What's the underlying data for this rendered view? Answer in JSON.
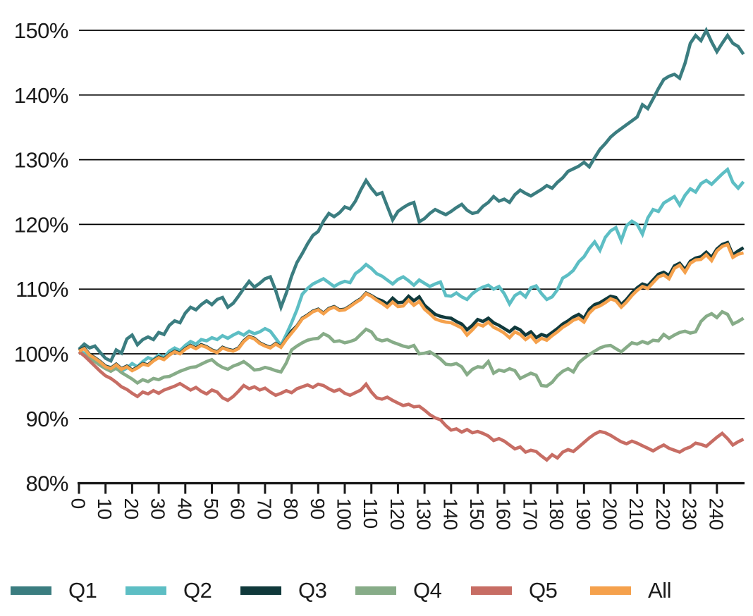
{
  "chart_data": {
    "type": "line",
    "title": "",
    "xlabel": "",
    "ylabel": "",
    "xlim": [
      0,
      250
    ],
    "ylim": [
      80,
      150
    ],
    "grid": true,
    "legend_position": "bottom",
    "x_step": 2,
    "x_ticks": [
      0,
      10,
      20,
      30,
      40,
      50,
      60,
      70,
      80,
      90,
      100,
      110,
      120,
      130,
      140,
      150,
      160,
      170,
      180,
      190,
      200,
      210,
      220,
      230,
      240
    ],
    "y_ticks": [
      {
        "value": 150,
        "label": "150%"
      },
      {
        "value": 140,
        "label": "140%"
      },
      {
        "value": 130,
        "label": "130%"
      },
      {
        "value": 120,
        "label": "120%"
      },
      {
        "value": 110,
        "label": "110%"
      },
      {
        "value": 100,
        "label": "100%"
      },
      {
        "value": 90,
        "label": "90%"
      },
      {
        "value": 80,
        "label": "80%"
      }
    ],
    "colors": {
      "axis": "#1a1a1a",
      "grid": "#000000",
      "text": "#1a1a1a",
      "background": "#ffffff"
    },
    "series": [
      {
        "name": "Q1",
        "color": "#3b7d80",
        "values": [
          100.7,
          101.5,
          100.9,
          101.2,
          100.2,
          99.3,
          98.9,
          100.6,
          100.1,
          102.3,
          102.9,
          101.4,
          102.2,
          102.6,
          102.2,
          103.3,
          103.0,
          104.4,
          105.1,
          104.8,
          106.3,
          107.2,
          106.8,
          107.6,
          108.2,
          107.6,
          108.4,
          108.7,
          107.2,
          107.8,
          108.9,
          110.1,
          111.2,
          110.3,
          110.9,
          111.6,
          111.9,
          109.8,
          107.2,
          109.4,
          112.0,
          114.1,
          115.5,
          117.0,
          118.3,
          118.9,
          120.5,
          121.7,
          121.2,
          121.8,
          122.7,
          122.4,
          123.6,
          125.3,
          126.8,
          125.6,
          124.6,
          124.9,
          122.8,
          120.7,
          122.0,
          122.6,
          123.1,
          123.4,
          120.4,
          120.9,
          121.7,
          122.3,
          121.9,
          121.5,
          122.0,
          122.6,
          123.1,
          122.2,
          121.7,
          121.9,
          122.8,
          123.4,
          124.3,
          123.6,
          123.9,
          123.4,
          124.6,
          125.3,
          124.8,
          124.4,
          124.9,
          125.4,
          126.0,
          125.6,
          126.5,
          127.2,
          128.2,
          128.6,
          129.0,
          129.6,
          128.9,
          130.3,
          131.6,
          132.5,
          133.5,
          134.2,
          134.8,
          135.4,
          136.0,
          136.6,
          138.5,
          137.9,
          139.4,
          141.0,
          142.4,
          142.9,
          143.2,
          142.6,
          144.9,
          148.0,
          149.2,
          148.4,
          150.0,
          148.2,
          146.7,
          148.0,
          149.2,
          148.0,
          147.5,
          146.3
        ]
      },
      {
        "name": "Q2",
        "color": "#5dbec4",
        "values": [
          100.4,
          100.1,
          99.5,
          99.0,
          98.5,
          98.1,
          97.9,
          97.7,
          97.3,
          97.8,
          98.5,
          98.0,
          98.8,
          99.4,
          99.1,
          99.8,
          99.4,
          100.4,
          100.9,
          100.5,
          101.3,
          101.9,
          101.5,
          102.2,
          102.0,
          102.5,
          102.2,
          102.8,
          102.4,
          102.9,
          103.3,
          102.9,
          103.5,
          103.1,
          103.4,
          103.9,
          103.5,
          102.4,
          101.3,
          103.0,
          104.8,
          106.8,
          109.2,
          110.1,
          110.8,
          111.2,
          111.6,
          111.0,
          110.4,
          110.9,
          111.2,
          111.0,
          112.4,
          113.0,
          113.8,
          113.2,
          112.4,
          112.0,
          111.4,
          110.8,
          111.5,
          111.9,
          111.3,
          110.6,
          111.4,
          110.9,
          110.4,
          110.8,
          111.1,
          109.0,
          108.9,
          109.4,
          108.8,
          108.4,
          109.3,
          109.9,
          110.3,
          110.6,
          110.0,
          110.4,
          109.3,
          107.7,
          109.0,
          109.5,
          108.8,
          110.2,
          110.5,
          109.3,
          108.4,
          108.8,
          109.9,
          111.7,
          112.2,
          112.9,
          114.2,
          115.0,
          116.3,
          117.3,
          116.0,
          118.0,
          119.0,
          119.5,
          117.5,
          119.8,
          120.5,
          120.0,
          118.5,
          121.0,
          122.3,
          122.0,
          123.3,
          123.8,
          124.3,
          123.0,
          124.5,
          125.5,
          125.0,
          126.3,
          126.8,
          126.2,
          127.0,
          127.8,
          128.5,
          126.5,
          125.6,
          126.6
        ]
      },
      {
        "name": "Q3",
        "color": "#10393b",
        "values": [
          100.5,
          100.9,
          99.9,
          99.4,
          98.8,
          98.1,
          97.8,
          98.4,
          97.7,
          98.1,
          97.5,
          97.9,
          98.5,
          98.3,
          99.0,
          99.5,
          99.2,
          99.9,
          100.4,
          100.1,
          100.8,
          101.3,
          100.9,
          101.4,
          101.1,
          100.6,
          100.3,
          101.0,
          100.7,
          100.5,
          100.9,
          102.0,
          102.7,
          102.4,
          101.7,
          101.3,
          101.0,
          101.6,
          101.1,
          102.3,
          103.5,
          104.3,
          105.5,
          106.0,
          106.6,
          106.9,
          106.3,
          107.0,
          107.3,
          106.8,
          106.9,
          107.4,
          108.0,
          108.5,
          109.4,
          109.0,
          108.5,
          108.2,
          107.7,
          108.6,
          107.9,
          108.0,
          108.9,
          108.2,
          108.8,
          107.5,
          106.8,
          106.1,
          105.8,
          105.6,
          105.5,
          105.0,
          104.6,
          103.7,
          104.4,
          105.3,
          105.0,
          105.5,
          104.8,
          104.4,
          103.9,
          103.4,
          104.1,
          103.7,
          102.9,
          103.4,
          102.5,
          103.0,
          102.7,
          103.3,
          103.9,
          104.6,
          105.1,
          105.7,
          106.1,
          105.5,
          106.9,
          107.6,
          107.9,
          108.4,
          108.9,
          108.7,
          107.6,
          108.4,
          109.4,
          110.2,
          110.8,
          110.5,
          111.4,
          112.3,
          112.6,
          112.1,
          113.6,
          114.0,
          113.0,
          114.3,
          114.8,
          115.0,
          115.7,
          114.9,
          116.2,
          116.9,
          117.2,
          115.3,
          115.9,
          116.4
        ]
      },
      {
        "name": "Q4",
        "color": "#87ac88",
        "values": [
          100.3,
          99.8,
          99.3,
          98.8,
          98.2,
          97.7,
          97.3,
          97.8,
          97.1,
          96.6,
          96.1,
          95.5,
          96.0,
          95.7,
          96.2,
          96.0,
          96.4,
          96.5,
          96.9,
          97.3,
          97.6,
          97.9,
          98.0,
          98.4,
          98.8,
          99.1,
          98.4,
          97.9,
          97.6,
          98.1,
          98.4,
          98.8,
          98.2,
          97.5,
          97.6,
          97.9,
          97.7,
          97.4,
          97.2,
          98.6,
          100.6,
          101.2,
          101.7,
          102.1,
          102.3,
          102.4,
          103.1,
          102.7,
          101.9,
          102.0,
          101.7,
          101.9,
          102.2,
          103.0,
          103.8,
          103.4,
          102.3,
          102.0,
          102.2,
          101.8,
          101.5,
          101.2,
          101.0,
          101.3,
          100.0,
          100.1,
          100.3,
          99.8,
          99.2,
          98.4,
          98.3,
          98.5,
          98.0,
          96.8,
          97.6,
          98.0,
          97.9,
          98.8,
          97.0,
          97.5,
          97.3,
          97.7,
          97.4,
          96.2,
          96.6,
          97.0,
          96.7,
          95.1,
          95.0,
          95.6,
          96.6,
          97.3,
          97.7,
          97.2,
          98.6,
          99.3,
          99.9,
          100.4,
          100.9,
          101.2,
          101.3,
          100.8,
          100.3,
          101.0,
          101.7,
          101.5,
          101.9,
          101.6,
          102.1,
          102.0,
          103.0,
          102.4,
          102.9,
          103.3,
          103.5,
          103.2,
          103.4,
          105.0,
          105.8,
          106.2,
          105.6,
          106.5,
          106.1,
          104.6,
          105.0,
          105.5
        ]
      },
      {
        "name": "Q5",
        "color": "#c76d64",
        "values": [
          100.3,
          99.7,
          98.9,
          98.1,
          97.3,
          96.6,
          96.2,
          95.6,
          94.9,
          94.5,
          93.9,
          93.4,
          94.1,
          93.8,
          94.3,
          93.9,
          94.4,
          94.7,
          95.0,
          95.4,
          94.9,
          94.4,
          94.8,
          94.2,
          93.8,
          94.4,
          94.1,
          93.2,
          92.8,
          93.4,
          94.2,
          95.1,
          94.6,
          94.9,
          94.4,
          94.7,
          94.1,
          93.6,
          93.9,
          94.3,
          94.0,
          94.6,
          94.9,
          95.2,
          94.8,
          95.3,
          95.1,
          94.6,
          94.2,
          94.5,
          93.9,
          93.6,
          94.0,
          94.4,
          95.3,
          94.1,
          93.2,
          93.0,
          93.3,
          92.8,
          92.4,
          92.0,
          92.2,
          91.8,
          91.9,
          91.3,
          90.6,
          90.1,
          89.8,
          88.9,
          88.2,
          88.4,
          87.9,
          88.3,
          87.8,
          88.0,
          87.7,
          87.3,
          86.6,
          86.9,
          86.5,
          85.9,
          85.3,
          85.6,
          84.8,
          85.1,
          84.9,
          84.2,
          83.6,
          84.4,
          83.9,
          84.8,
          85.2,
          84.9,
          85.6,
          86.3,
          87.0,
          87.6,
          88.0,
          87.8,
          87.4,
          86.9,
          86.4,
          86.1,
          86.5,
          86.2,
          85.8,
          85.4,
          85.0,
          85.5,
          85.9,
          85.4,
          85.1,
          84.8,
          85.3,
          85.6,
          86.2,
          86.0,
          85.7,
          86.4,
          87.1,
          87.7,
          86.9,
          85.9,
          86.4,
          86.8
        ]
      },
      {
        "name": "All",
        "color": "#f5a14c",
        "values": [
          100.4,
          100.8,
          99.8,
          99.3,
          98.7,
          98.0,
          97.7,
          98.3,
          97.6,
          98.0,
          97.4,
          97.8,
          98.4,
          98.2,
          98.9,
          99.4,
          99.1,
          99.8,
          100.3,
          100.0,
          100.7,
          101.2,
          100.8,
          101.3,
          101.0,
          100.5,
          100.2,
          100.9,
          100.6,
          100.4,
          100.8,
          101.9,
          102.6,
          102.3,
          101.6,
          101.2,
          100.9,
          101.5,
          101.0,
          102.2,
          103.2,
          104.2,
          105.4,
          105.9,
          106.5,
          106.8,
          106.2,
          106.9,
          107.2,
          106.7,
          106.8,
          107.3,
          107.9,
          108.4,
          109.3,
          108.9,
          108.3,
          107.8,
          107.2,
          108.0,
          107.3,
          107.4,
          108.3,
          107.5,
          108.1,
          106.9,
          106.2,
          105.4,
          105.1,
          104.9,
          104.8,
          104.4,
          104.0,
          102.9,
          103.7,
          104.6,
          104.3,
          104.9,
          104.1,
          103.7,
          103.2,
          102.5,
          103.4,
          103.0,
          102.2,
          102.8,
          101.8,
          102.4,
          102.1,
          102.8,
          103.4,
          104.1,
          104.6,
          105.2,
          105.5,
          104.9,
          106.3,
          107.1,
          107.4,
          107.9,
          108.5,
          108.2,
          107.2,
          108.0,
          109.0,
          109.8,
          110.4,
          110.1,
          111.0,
          111.9,
          112.2,
          111.6,
          113.2,
          113.7,
          112.6,
          114.0,
          114.5,
          114.6,
          115.3,
          114.4,
          115.9,
          116.6,
          116.9,
          114.9,
          115.4,
          115.6
        ]
      }
    ]
  }
}
